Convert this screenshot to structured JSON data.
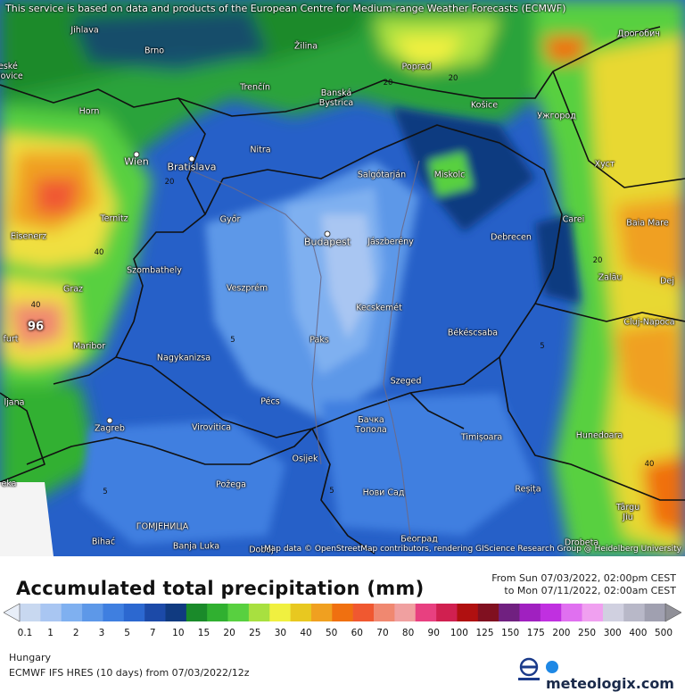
{
  "notice": "This service is based on data and products of the European Centre for Medium-range Weather Forecasts (ECMWF)",
  "attribution": "Map data © OpenStreetMap contributors, rendering GIScience Research Group @ Heidelberg University",
  "cities": [
    {
      "name": "Jihlava"
    },
    {
      "name": "Brno"
    },
    {
      "name": "Žilina"
    },
    {
      "name": "Poprad"
    },
    {
      "name": "Дрогобич"
    },
    {
      "name": "Trenčín"
    },
    {
      "name": "Banská Bystrica"
    },
    {
      "name": "Košice"
    },
    {
      "name": "Ужгород"
    },
    {
      "name": "Horn"
    },
    {
      "name": "Nitra"
    },
    {
      "name": "Wien"
    },
    {
      "name": "Bratislava"
    },
    {
      "name": "Salgótarján"
    },
    {
      "name": "Miskolc"
    },
    {
      "name": "Хуст"
    },
    {
      "name": "Ternitz"
    },
    {
      "name": "Győr"
    },
    {
      "name": "Budapest"
    },
    {
      "name": "Jászberény"
    },
    {
      "name": "Carei"
    },
    {
      "name": "Baia Mare"
    },
    {
      "name": "Eisenerz"
    },
    {
      "name": "Debrecen"
    },
    {
      "name": "Szombathely"
    },
    {
      "name": "Graz"
    },
    {
      "name": "Veszprém"
    },
    {
      "name": "Zalău"
    },
    {
      "name": "Dej"
    },
    {
      "name": "Kecskemét"
    },
    {
      "name": "Cluj-Napoca"
    },
    {
      "name": "Maribor"
    },
    {
      "name": "Paks"
    },
    {
      "name": "Békéscsaba"
    },
    {
      "name": "Nagykanizsa"
    },
    {
      "name": "Szeged"
    },
    {
      "name": "Pécs"
    },
    {
      "name": "Бачка Топола"
    },
    {
      "name": "Zagreb"
    },
    {
      "name": "Virovitica"
    },
    {
      "name": "Timișoara"
    },
    {
      "name": "Hunedoara"
    },
    {
      "name": "Osijek"
    },
    {
      "name": "Požega"
    },
    {
      "name": "Нови Сад"
    },
    {
      "name": "Reșița"
    },
    {
      "name": "Târgu Jiu"
    },
    {
      "name": "ГОМЈЕНИЦА"
    },
    {
      "name": "Bihać"
    },
    {
      "name": "Banja Luka"
    },
    {
      "name": "Doboj"
    },
    {
      "name": "Београд"
    },
    {
      "name": "Drobeta"
    },
    {
      "name": "ljana"
    },
    {
      "name": "eka"
    },
    {
      "name": "eské jovice"
    },
    {
      "name": "furt"
    }
  ],
  "values": [
    {
      "v": "96",
      "emph": true
    },
    {
      "v": "40"
    },
    {
      "v": "20"
    },
    {
      "v": "5"
    },
    {
      "v": "5"
    },
    {
      "v": "5"
    },
    {
      "v": "5"
    },
    {
      "v": "20"
    },
    {
      "v": "40"
    },
    {
      "v": "20"
    },
    {
      "v": "40"
    },
    {
      "v": "20"
    }
  ],
  "legend": {
    "title": "Accumulated total precipitation (mm)",
    "period_from": "From Sun 07/03/2022, 02:00pm CEST",
    "period_to": "to Mon 07/11/2022, 02:00am CEST",
    "region": "Hungary",
    "model": "ECMWF IFS HRES (10 days) from 07/03/2022/12z",
    "brand": "meteologix.com",
    "colors": [
      "#c8d8f0",
      "#a9c6f2",
      "#7fb0f0",
      "#5d98e8",
      "#3f7fe0",
      "#2c68d0",
      "#1c4aa8",
      "#103a80",
      "#1a8a2a",
      "#30b030",
      "#58d040",
      "#a8e040",
      "#f0f040",
      "#e8c820",
      "#f0a020",
      "#f07010",
      "#f05830",
      "#f08870",
      "#f0a0a0",
      "#e84080",
      "#d02050",
      "#b01010",
      "#801020",
      "#702080",
      "#a020c0",
      "#c030e0",
      "#e070f0",
      "#f0a0f0",
      "#d0d0e0",
      "#b8b8c8",
      "#a0a0b0"
    ],
    "ticks": [
      "0.1",
      "1",
      "2",
      "3",
      "5",
      "7",
      "10",
      "15",
      "20",
      "25",
      "30",
      "40",
      "50",
      "60",
      "70",
      "80",
      "90",
      "100",
      "125",
      "150",
      "175",
      "200",
      "250",
      "300",
      "400",
      "500"
    ]
  }
}
